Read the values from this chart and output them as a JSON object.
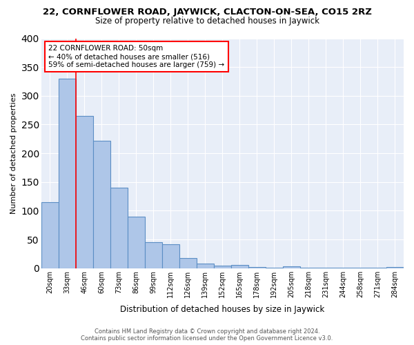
{
  "title1": "22, CORNFLOWER ROAD, JAYWICK, CLACTON-ON-SEA, CO15 2RZ",
  "title2": "Size of property relative to detached houses in Jaywick",
  "xlabel": "Distribution of detached houses by size in Jaywick",
  "ylabel": "Number of detached properties",
  "categories": [
    "20sqm",
    "33sqm",
    "46sqm",
    "60sqm",
    "73sqm",
    "86sqm",
    "99sqm",
    "112sqm",
    "126sqm",
    "139sqm",
    "152sqm",
    "165sqm",
    "178sqm",
    "192sqm",
    "205sqm",
    "218sqm",
    "231sqm",
    "244sqm",
    "258sqm",
    "271sqm",
    "284sqm"
  ],
  "bar_values": [
    115,
    330,
    265,
    222,
    140,
    90,
    45,
    42,
    18,
    8,
    5,
    6,
    2,
    1,
    3,
    1,
    1,
    1,
    1,
    1,
    2
  ],
  "bar_color": "#aec6e8",
  "bar_edge_color": "#5b8ec4",
  "annotation_text": "22 CORNFLOWER ROAD: 50sqm\n← 40% of detached houses are smaller (516)\n59% of semi-detached houses are larger (759) →",
  "vline_x": 1.5,
  "annotation_box_color": "white",
  "annotation_box_edge_color": "red",
  "footer": "Contains HM Land Registry data © Crown copyright and database right 2024.\nContains public sector information licensed under the Open Government Licence v3.0.",
  "ylim": [
    0,
    400
  ],
  "plot_background": "#e8eef8"
}
